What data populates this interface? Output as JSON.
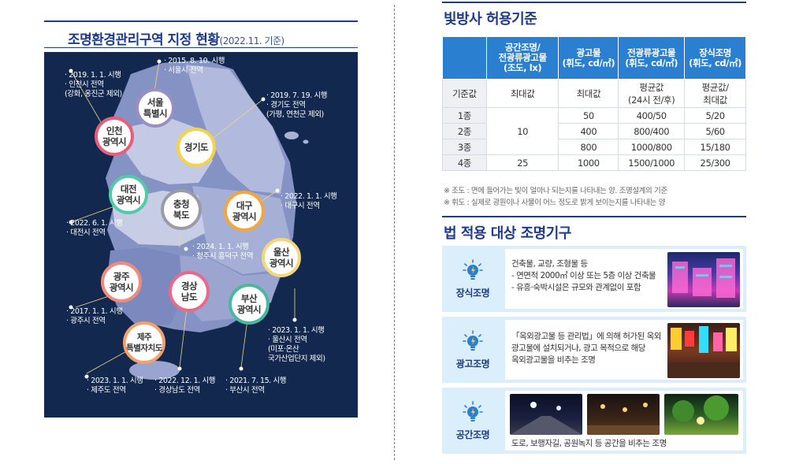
{
  "map_section": {
    "title": "조명환경관리구역 지정 현황",
    "subtitle": "(2022.11. 기준)",
    "regions": [
      {
        "label": [
          "서울",
          "특별시"
        ],
        "ring": "#9b8ec2"
      },
      {
        "label": [
          "인천",
          "광역시"
        ],
        "ring": "#e85d7a"
      },
      {
        "label": [
          "경기도"
        ],
        "ring": "#f5d24a"
      },
      {
        "label": [
          "대전",
          "광역시"
        ],
        "ring": "#54c9a6"
      },
      {
        "label": [
          "충청",
          "북도"
        ],
        "ring": "#9b9aa8"
      },
      {
        "label": [
          "대구",
          "광역시"
        ],
        "ring": "#f2a63c"
      },
      {
        "label": [
          "울산",
          "광역시"
        ],
        "ring": "#f3d77a"
      },
      {
        "label": [
          "광주",
          "광역시"
        ],
        "ring": "#f08a7d"
      },
      {
        "label": [
          "경상",
          "남도"
        ],
        "ring": "#e86a8a"
      },
      {
        "label": [
          "부산",
          "광역시"
        ],
        "ring": "#4ab89d"
      },
      {
        "label": [
          "제주",
          "특별자치도"
        ],
        "ring": "#f3a06b"
      }
    ],
    "annotations": [
      {
        "lines": [
          "· 2019. 1. 1. 시행",
          "· 인천시 전역",
          "  (강화, 옹진군 제외)"
        ]
      },
      {
        "lines": [
          "· 2015. 8. 10. 시행",
          "· 서울시 전역"
        ]
      },
      {
        "lines": [
          "· 2019. 7. 19. 시행",
          "· 경기도 전역",
          "  (가평, 연천군 제외)"
        ]
      },
      {
        "lines": [
          "· 2022. 1. 1. 시행",
          "· 대구시 전역"
        ]
      },
      {
        "lines": [
          "· 2022. 6. 1. 시행",
          "· 대전시 전역"
        ]
      },
      {
        "lines": [
          "· 2024. 1. 1. 시행",
          "· 청주시 흥덕구 전역"
        ]
      },
      {
        "lines": [
          "· 2017. 1. 1. 시행",
          "· 광주시 전역"
        ]
      },
      {
        "lines": [
          "· 2023. 1. 1. 시행",
          "· 울산시 전역",
          "  (미포·온산",
          "  국가산업단지 제외)"
        ]
      },
      {
        "lines": [
          "· 2023. 1. 1. 시행",
          "· 제주도 전역"
        ]
      },
      {
        "lines": [
          "· 2022. 12. 1. 시행",
          "· 경상남도 전역"
        ]
      },
      {
        "lines": [
          "· 2021. 7. 15. 시행",
          "· 부산시 전역"
        ]
      }
    ]
  },
  "standards": {
    "title": "빛방사 허용기준",
    "headers": [
      "",
      [
        "공간조명/",
        "전광류광고물",
        "(조도, lx)"
      ],
      [
        "광고물",
        "(휘도, cd/㎡)"
      ],
      [
        "전광류광고물",
        "(휘도, cd/㎡)"
      ],
      [
        "장식조명",
        "(휘도, cd/㎡)"
      ]
    ],
    "base_row": {
      "label": "기준값",
      "cells": [
        [
          "최대값"
        ],
        [
          "최대값"
        ],
        [
          "평균값",
          "(24시 전/후)"
        ],
        [
          "평균값/",
          "최대값"
        ]
      ]
    },
    "rows": [
      {
        "label": "1종",
        "ad": "50",
        "elec": "400/50",
        "deco": "5/20"
      },
      {
        "label": "2종",
        "ad": "400",
        "elec": "800/400",
        "deco": "5/60"
      },
      {
        "label": "3종",
        "ad": "800",
        "elec": "1000/800",
        "deco": "15/180"
      },
      {
        "label": "4종",
        "ad": "1000",
        "elec": "1500/1000",
        "deco": "25/300"
      }
    ],
    "space_1_3": "10",
    "space_4": "25",
    "notes": [
      "※ 조도 : 면에 들어가는 빛이 얼마나 되는지를 나타내는 양. 조명설계의 기준",
      "※ 휘도 : 실제로 광원이나 사물이 어느 정도로 밝게 보이는지를 나타내는 양"
    ]
  },
  "fixtures": {
    "title": "법 적용 대상 조명기구",
    "items": [
      {
        "label": "장식조명",
        "lines": [
          "건축물, 교량, 조형물 등",
          "- 연면적 2000㎡ 이상 또는 5층 이상 건축물",
          "- 유흥·숙박시설은 규모와 관계없이 포함"
        ]
      },
      {
        "label": "광고조명",
        "lines": [
          "「옥외광고물 등 관리법」에 의해 허가된 옥외",
          "광고물에 설치되거나, 광고 목적으로 해당",
          "옥외광고물을 비추는 조명"
        ]
      },
      {
        "label": "공간조명",
        "lines": [
          "도로, 보행자길, 공원녹지 등 공간을 비추는 조명"
        ]
      }
    ]
  },
  "colors": {
    "accent": "#1e3a8a",
    "table_header": "#2a7fd1",
    "map_bg": "#12284f",
    "fixture_bg": "#dbeefb"
  }
}
